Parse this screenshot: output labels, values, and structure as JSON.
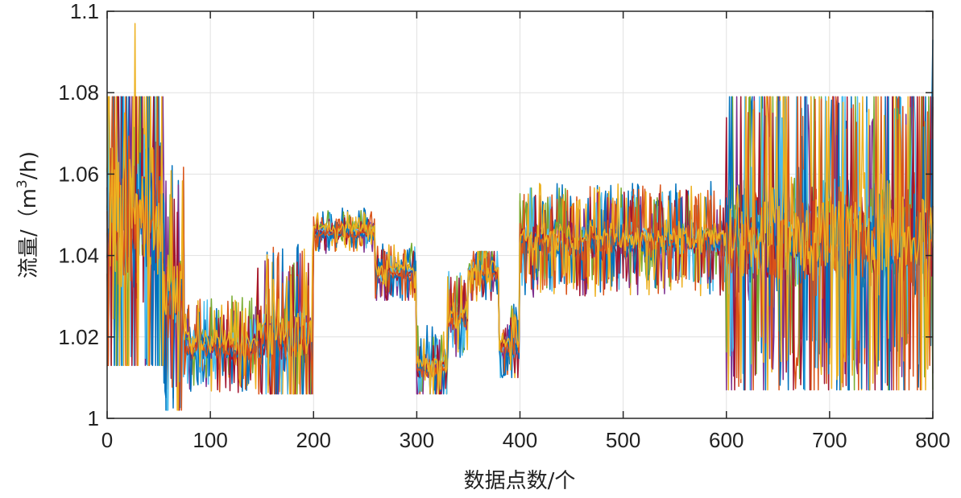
{
  "chart_data": {
    "type": "line",
    "title": "",
    "xlabel": "数据点数/个",
    "ylabel": "流量/（m³/h)",
    "ylabel_parts": {
      "main": "流量/（m",
      "sup": "3",
      "tail": "/h)"
    },
    "xlim": [
      0,
      800
    ],
    "ylim": [
      1.0,
      1.1
    ],
    "x_ticks": [
      0,
      100,
      200,
      300,
      400,
      500,
      600,
      700,
      800
    ],
    "x_tick_labels": [
      "0",
      "100",
      "200",
      "300",
      "400",
      "500",
      "600",
      "700",
      "800"
    ],
    "y_ticks": [
      1.0,
      1.02,
      1.04,
      1.06,
      1.08,
      1.1
    ],
    "y_tick_labels": [
      "1",
      "1.02",
      "1.04",
      "1.06",
      "1.08",
      "1.1"
    ],
    "grid": true,
    "legend": "none",
    "series_count": 10,
    "series_colors": [
      "#0072BD",
      "#D95319",
      "#EDB120",
      "#7E2F8E",
      "#77AC30",
      "#4DBEEE",
      "#A2142F",
      "#0072BD",
      "#D95319",
      "#EDB120"
    ],
    "segments": [
      {
        "x_range": [
          0,
          55
        ],
        "mean": 1.05,
        "spread": 0.028,
        "y_min": 1.013,
        "y_max": 1.079,
        "peak": {
          "x": 27,
          "y": 1.097
        }
      },
      {
        "x_range": [
          55,
          75
        ],
        "mean": 1.03,
        "spread": 0.015,
        "y_min": 1.002,
        "y_max": 1.073
      },
      {
        "x_range": [
          75,
          145
        ],
        "mean": 1.018,
        "spread": 0.005,
        "y_min": 1.004,
        "y_max": 1.033
      },
      {
        "x_range": [
          145,
          200
        ],
        "mean": 1.02,
        "spread": 0.01,
        "y_min": 1.006,
        "y_max": 1.05
      },
      {
        "x_range": [
          200,
          260
        ],
        "mean": 1.046,
        "spread": 0.002,
        "y_min": 1.02,
        "y_max": 1.055
      },
      {
        "x_range": [
          260,
          300
        ],
        "mean": 1.036,
        "spread": 0.003,
        "y_min": 1.029,
        "y_max": 1.043
      },
      {
        "x_range": [
          300,
          330
        ],
        "mean": 1.013,
        "spread": 0.004,
        "y_min": 1.006,
        "y_max": 1.04
      },
      {
        "x_range": [
          330,
          350
        ],
        "mean": 1.025,
        "spread": 0.005,
        "y_min": 1.015,
        "y_max": 1.045
      },
      {
        "x_range": [
          350,
          380
        ],
        "mean": 1.036,
        "spread": 0.003,
        "y_min": 1.023,
        "y_max": 1.041
      },
      {
        "x_range": [
          380,
          400
        ],
        "mean": 1.018,
        "spread": 0.004,
        "y_min": 1.01,
        "y_max": 1.03
      },
      {
        "x_range": [
          400,
          600
        ],
        "mean": 1.044,
        "spread": 0.006,
        "y_min": 1.013,
        "y_max": 1.066
      },
      {
        "x_range": [
          600,
          800
        ],
        "mean": 1.045,
        "spread": 0.02,
        "y_min": 1.007,
        "y_max": 1.079,
        "end_spike": {
          "x": 800,
          "y": 1.093
        }
      }
    ]
  }
}
